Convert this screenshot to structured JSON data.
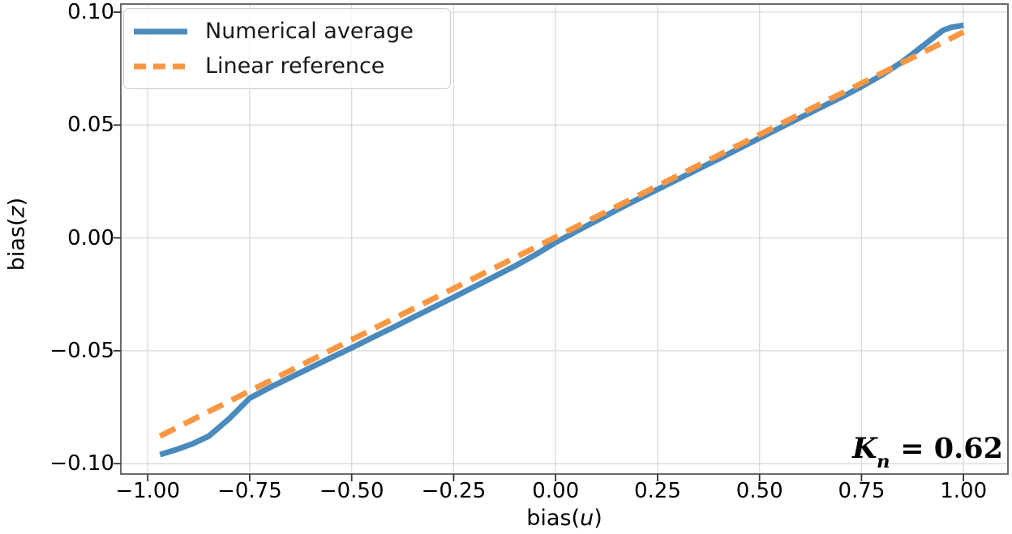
{
  "figure": {
    "background": "#ffffff",
    "xlabel_parts": {
      "prefix": "bias(",
      "variable": "u",
      "suffix": ")"
    },
    "ylabel_parts": {
      "prefix": "bias(",
      "variable": "z",
      "suffix": ")"
    },
    "annotation_parts": {
      "symbol": "K",
      "subscript": "n",
      "rest": " = 0.62"
    }
  },
  "chart_data": {
    "type": "line",
    "title": "",
    "xlabel": "bias(u)",
    "ylabel": "bias(z)",
    "xlim": [
      -1.066,
      1.109
    ],
    "ylim": [
      -0.1046,
      0.1036
    ],
    "grid": true,
    "grid_color": "#d9d9d9",
    "spine_color": "#6b6b6b",
    "tick_color": "#333333",
    "legend_position": "upper left",
    "x_ticks": [
      -1.0,
      -0.75,
      -0.5,
      -0.25,
      0.0,
      0.25,
      0.5,
      0.75,
      1.0
    ],
    "x_tick_labels": [
      "−1.00",
      "−0.75",
      "−0.50",
      "−0.25",
      "0.00",
      "0.25",
      "0.50",
      "0.75",
      "1.00"
    ],
    "y_ticks": [
      0.1,
      0.05,
      0.0,
      -0.05,
      -0.1
    ],
    "y_tick_labels": [
      "0.10",
      "0.05",
      "0.00",
      "−0.05",
      "−0.10"
    ],
    "annotations": [
      "K_n = 0.62"
    ],
    "series": [
      {
        "name": "Numerical average",
        "color": "#4a8abd",
        "style": "solid",
        "line_width": 7,
        "x": [
          -0.97,
          -0.93,
          -0.89,
          -0.85,
          -0.8,
          -0.75,
          -0.7,
          -0.65,
          -0.6,
          -0.55,
          -0.5,
          -0.45,
          -0.4,
          -0.35,
          -0.3,
          -0.25,
          -0.2,
          -0.15,
          -0.1,
          -0.05,
          0.0,
          0.05,
          0.1,
          0.15,
          0.2,
          0.25,
          0.3,
          0.35,
          0.4,
          0.45,
          0.5,
          0.55,
          0.6,
          0.65,
          0.7,
          0.75,
          0.8,
          0.85,
          0.9,
          0.95,
          0.97,
          1.0
        ],
        "y": [
          -0.096,
          -0.0938,
          -0.0912,
          -0.0878,
          -0.08,
          -0.071,
          -0.0662,
          -0.0618,
          -0.0574,
          -0.053,
          -0.0487,
          -0.0442,
          -0.0398,
          -0.0353,
          -0.0308,
          -0.0263,
          -0.0217,
          -0.0171,
          -0.0125,
          -0.0075,
          -0.002,
          0.0028,
          0.0076,
          0.0124,
          0.017,
          0.0215,
          0.026,
          0.0305,
          0.035,
          0.0396,
          0.0442,
          0.0488,
          0.0533,
          0.0578,
          0.0623,
          0.067,
          0.0722,
          0.078,
          0.085,
          0.092,
          0.0933,
          0.0942
        ]
      },
      {
        "name": "Linear reference",
        "color": "#fa9743",
        "style": "dashed",
        "line_width": 7,
        "dash": [
          21,
          12
        ],
        "x": [
          -0.97,
          1.0
        ],
        "y": [
          -0.0878,
          0.0912
        ]
      }
    ]
  }
}
